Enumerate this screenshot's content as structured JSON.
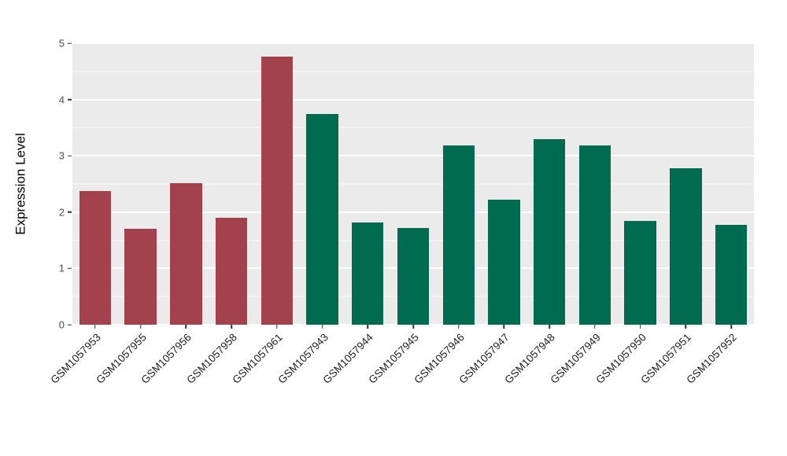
{
  "chart_data": {
    "type": "bar",
    "title": "",
    "xlabel": "",
    "ylabel": "Expression Level",
    "categories": [
      "GSM1057953",
      "GSM1057955",
      "GSM1057956",
      "GSM1057958",
      "GSM1057961",
      "GSM1057943",
      "GSM1057944",
      "GSM1057945",
      "GSM1057946",
      "GSM1057947",
      "GSM1057948",
      "GSM1057949",
      "GSM1057950",
      "GSM1057951",
      "GSM1057952"
    ],
    "values": [
      2.37,
      1.71,
      2.52,
      1.9,
      4.76,
      3.74,
      1.82,
      1.72,
      3.18,
      2.22,
      3.29,
      3.18,
      1.84,
      2.78,
      1.77
    ],
    "bar_colors": [
      "#A3424C",
      "#A3424C",
      "#A3424C",
      "#A3424C",
      "#A3424C",
      "#006B4E",
      "#006B4E",
      "#006B4E",
      "#006B4E",
      "#006B4E",
      "#006B4E",
      "#006B4E",
      "#006B4E",
      "#006B4E",
      "#006B4E"
    ],
    "ylim": [
      0,
      5
    ],
    "yticks": [
      "0",
      "1",
      "2",
      "3",
      "4",
      "5"
    ],
    "grid": "on",
    "legend": "none",
    "panel_background": "#EBEBEB",
    "gridline_color": "#FFFFFF",
    "bar_width_fraction": 0.7
  }
}
